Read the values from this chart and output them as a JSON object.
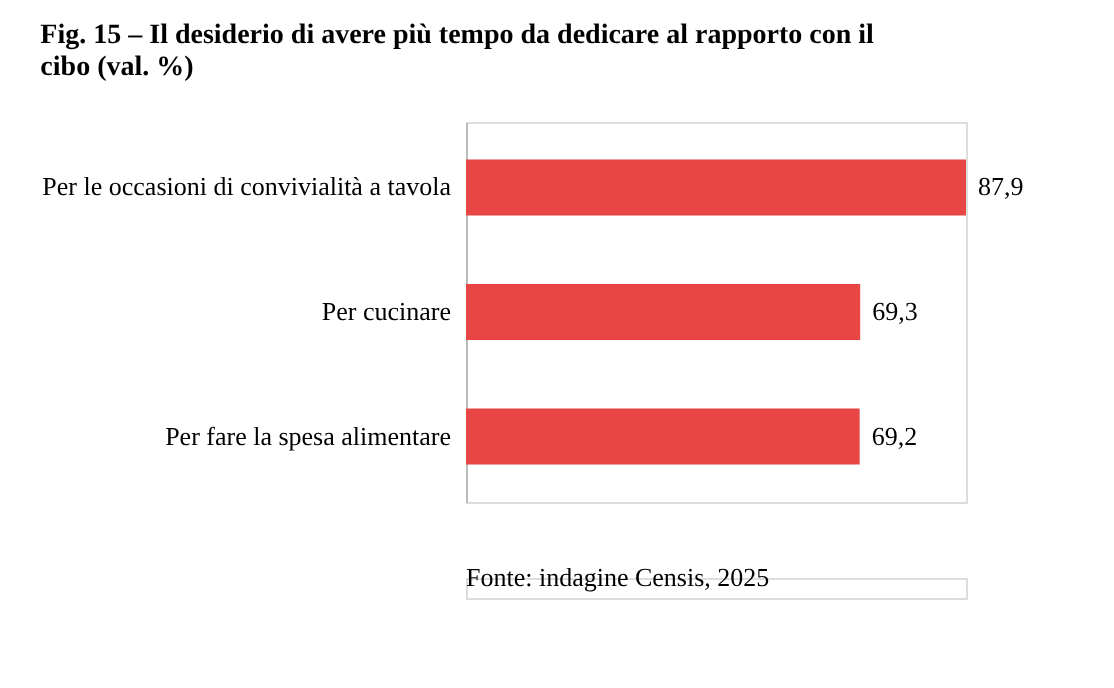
{
  "chart_data": {
    "type": "bar",
    "orientation": "horizontal",
    "title": "Fig. 15 – Il desiderio di avere più tempo da dedicare al rapporto con il cibo (val. %)",
    "categories": [
      "Per le occasioni di convivialità a tavola",
      "Per cucinare",
      "Per fare la spesa alimentare"
    ],
    "values": [
      87.9,
      69.3,
      69.2
    ],
    "color": "#e84545",
    "value_labels": [
      "87,9",
      "69,3",
      "69,2"
    ],
    "annotations": [
      "Fonte: indagine Censis, 2025"
    ]
  }
}
